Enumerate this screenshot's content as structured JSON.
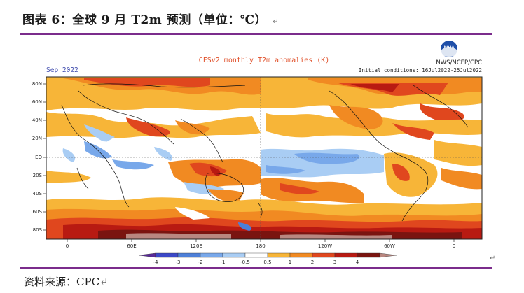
{
  "caption": {
    "title": "图表 6：全球 9 月 T2m 预测（单位：℃）",
    "para_mark": "↵",
    "source": "资料来源：CPC↵",
    "source_mark": "↵"
  },
  "map": {
    "title": "CFSv2 monthly T2m anomalies (K)",
    "month": "Sep 2022",
    "agency": "NWS/NCEP/CPC",
    "logo_text": "NOAA",
    "init": "Initial conditions: 16Jul2022-25Jul2022",
    "lat_labels": [
      "80N",
      "60N",
      "40N",
      "20N",
      "EQ",
      "20S",
      "40S",
      "60S",
      "80S"
    ],
    "lon_labels": [
      "0",
      "60E",
      "120E",
      "180",
      "120W",
      "60W",
      "0"
    ],
    "colorbar": {
      "ticks": [
        "-4",
        "-3",
        "-2",
        "-1",
        "-0.5",
        "0.5",
        "1",
        "2",
        "3",
        "4"
      ],
      "colors": [
        "#5a2a98",
        "#3b48c8",
        "#4d7fd8",
        "#78a8ea",
        "#a9cdf4",
        "#ffffff",
        "#f7b538",
        "#f18a22",
        "#e0471e",
        "#b81a12",
        "#7a1410",
        "#b98780"
      ]
    }
  }
}
